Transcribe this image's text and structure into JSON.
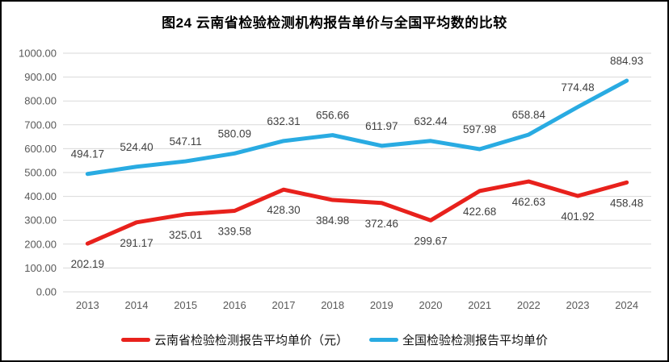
{
  "figure_title": "图24 云南省检验检测机构报告单价与全国平均数的比较",
  "chart_data": {
    "type": "line",
    "title": "图24 云南省检验检测机构报告单价与全国平均数的比较",
    "categories": [
      "2013",
      "2014",
      "2015",
      "2016",
      "2017",
      "2018",
      "2019",
      "2020",
      "2021",
      "2022",
      "2023",
      "2024"
    ],
    "series": [
      {
        "name": "云南省检验检测报告平均单价（元）",
        "color": "#e8211c",
        "label_position": "below",
        "values": [
          202.19,
          291.17,
          325.01,
          339.58,
          428.3,
          384.98,
          372.46,
          299.67,
          422.68,
          462.63,
          401.92,
          458.48
        ]
      },
      {
        "name": "全国检验检测报告平均单价",
        "color": "#29abe2",
        "label_position": "above",
        "values": [
          494.17,
          524.4,
          547.11,
          580.09,
          632.31,
          656.66,
          611.97,
          632.44,
          597.98,
          658.84,
          774.48,
          884.93
        ]
      }
    ],
    "xlabel": "",
    "ylabel": "",
    "ylim": [
      0,
      1000
    ],
    "ytick_step": 100,
    "yticks": [
      "0.00",
      "100.00",
      "200.00",
      "300.00",
      "400.00",
      "500.00",
      "600.00",
      "700.00",
      "800.00",
      "900.00",
      "1000.00"
    ],
    "value_decimals": 2,
    "grid": "horizontal",
    "gridline_color": "#d9d9d9",
    "axis_label_color": "#595959",
    "data_label_color": "#404040",
    "legend_position": "bottom"
  }
}
